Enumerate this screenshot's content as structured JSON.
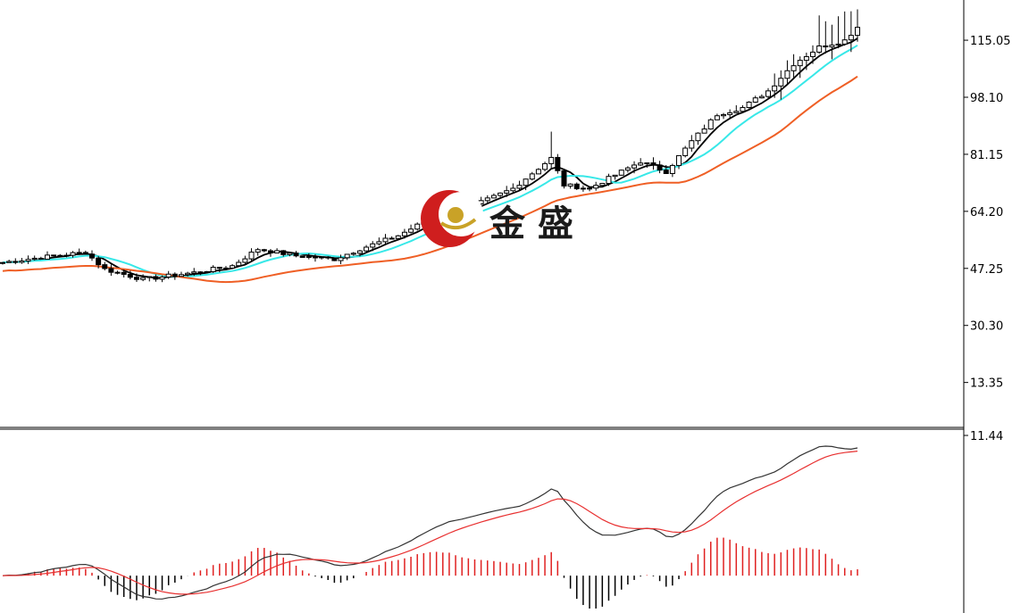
{
  "chart_data": [
    {
      "type": "candlestick",
      "name": "price-panel",
      "ylim": [
        0,
        127
      ],
      "y_ticks": [
        {
          "value": 115.05,
          "label": "115.05"
        },
        {
          "value": 98.1,
          "label": "98.10"
        },
        {
          "value": 81.15,
          "label": "81.15"
        },
        {
          "value": 64.2,
          "label": "64.20"
        },
        {
          "value": 47.25,
          "label": "47.25"
        },
        {
          "value": 30.3,
          "label": "30.30"
        },
        {
          "value": 13.35,
          "label": "13.35"
        }
      ],
      "overlays": [
        {
          "kind": "moving-average",
          "color": "#000000"
        },
        {
          "kind": "moving-average",
          "color": "#38e8e8"
        },
        {
          "kind": "moving-average",
          "color": "#ef5f25"
        }
      ],
      "logo": {
        "text": "金 盛",
        "colors": [
          "#d42020",
          "#c8a020"
        ]
      },
      "grid": false
    },
    {
      "type": "macd",
      "name": "indicator-panel",
      "y_ticks": [
        {
          "value": 11.44,
          "label": "11.44"
        }
      ],
      "line_colors": {
        "dif": "#333333",
        "dea": "#e83030"
      },
      "histogram_colors": {
        "positive": "#e02020",
        "negative": "#000000"
      },
      "grid": false
    }
  ]
}
